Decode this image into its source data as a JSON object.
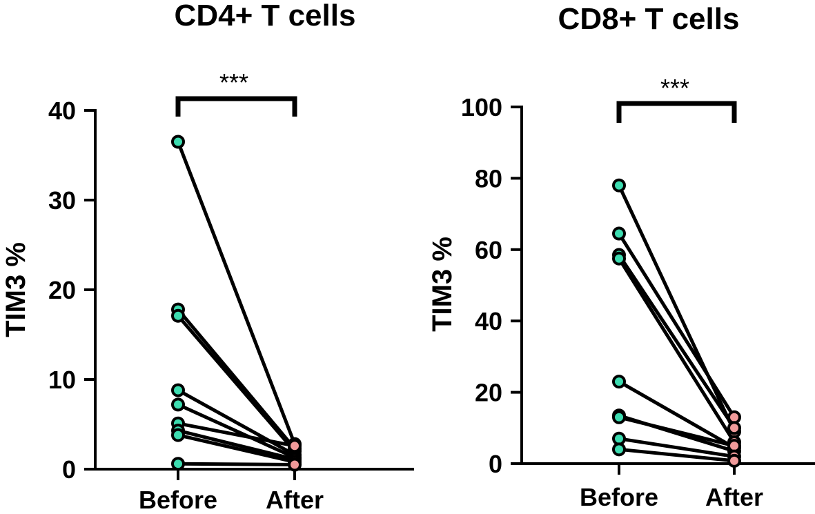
{
  "chart_data": [
    {
      "type": "paired-line",
      "title": "CD4+ T cells",
      "ylabel": "TIM3 %",
      "xlabel": "",
      "categories": [
        "Before",
        "After"
      ],
      "ylim": [
        0,
        40
      ],
      "yticks": [
        0,
        10,
        20,
        30,
        40
      ],
      "significance": "***",
      "colors": {
        "before": "#3ddcb0",
        "after": "#f09a9a",
        "line": "#000000"
      },
      "pairs": [
        {
          "before": 36.5,
          "after": 2.8
        },
        {
          "before": 17.8,
          "after": 2.3
        },
        {
          "before": 17.1,
          "after": 2.0
        },
        {
          "before": 8.8,
          "after": 1.6
        },
        {
          "before": 7.2,
          "after": 1.3
        },
        {
          "before": 5.1,
          "after": 2.6
        },
        {
          "before": 4.3,
          "after": 1.1
        },
        {
          "before": 3.8,
          "after": 0.8
        },
        {
          "before": 0.6,
          "after": 0.5
        }
      ]
    },
    {
      "type": "paired-line",
      "title": "CD8+ T cells",
      "ylabel": "TIM3 %",
      "xlabel": "",
      "categories": [
        "Before",
        "After"
      ],
      "ylim": [
        0,
        100
      ],
      "yticks": [
        0,
        20,
        40,
        60,
        80,
        100
      ],
      "significance": "***",
      "colors": {
        "before": "#3ddcb0",
        "after": "#f09a9a",
        "line": "#000000"
      },
      "pairs": [
        {
          "before": 78.0,
          "after": 9.0
        },
        {
          "before": 64.5,
          "after": 13.0
        },
        {
          "before": 58.5,
          "after": 10.0
        },
        {
          "before": 57.5,
          "after": 6.0
        },
        {
          "before": 23.0,
          "after": 4.5
        },
        {
          "before": 13.5,
          "after": 3.5
        },
        {
          "before": 13.0,
          "after": 5.0
        },
        {
          "before": 7.0,
          "after": 2.0
        },
        {
          "before": 4.0,
          "after": 0.8
        }
      ]
    }
  ]
}
